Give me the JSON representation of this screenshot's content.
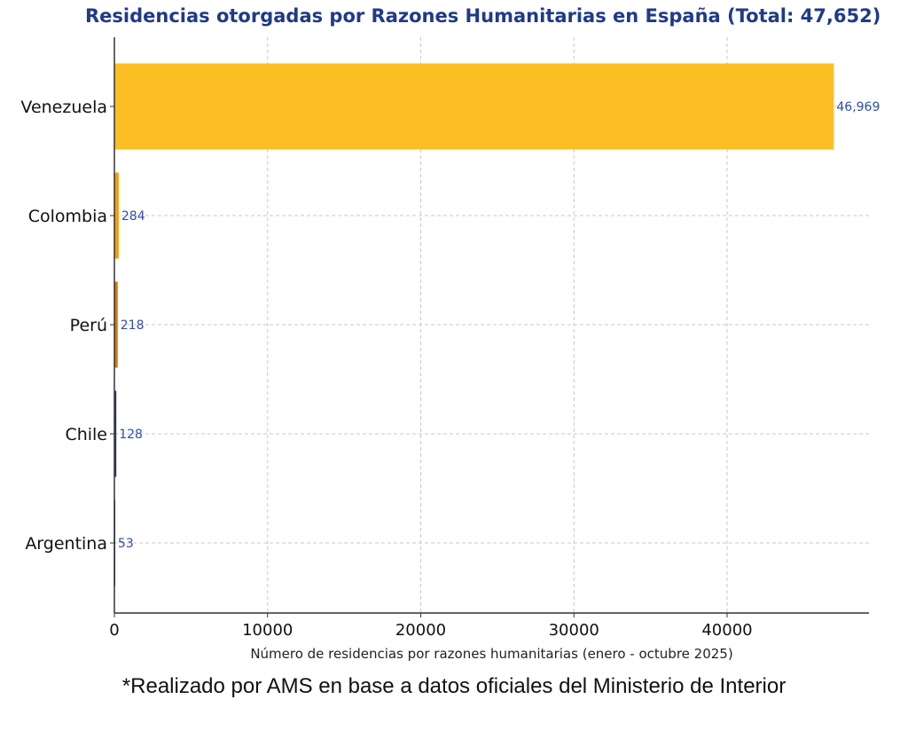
{
  "chart_data": {
    "type": "bar",
    "orientation": "horizontal",
    "title": "Residencias otorgadas por Razones Humanitarias en España (Total: 47,652)",
    "xlabel": "Número de residencias por razones humanitarias (enero - octubre 2025)",
    "ylabel": "",
    "categories": [
      "Venezuela",
      "Colombia",
      "Perú",
      "Chile",
      "Argentina"
    ],
    "values": [
      46969,
      284,
      218,
      128,
      53
    ],
    "value_labels": [
      "46,969",
      "284",
      "218",
      "128",
      "53"
    ],
    "bar_colors": [
      "#fbbf24",
      "#f59e0b",
      "#d97706",
      "#1e3a8a",
      "#0f172a"
    ],
    "xticks": [
      "0",
      "10000",
      "20000",
      "30000",
      "40000"
    ],
    "xlim": [
      0,
      49300
    ],
    "grid": true,
    "legend": null
  },
  "footer": "*Realizado por AMS en base a datos oficiales del Ministerio de Interior"
}
